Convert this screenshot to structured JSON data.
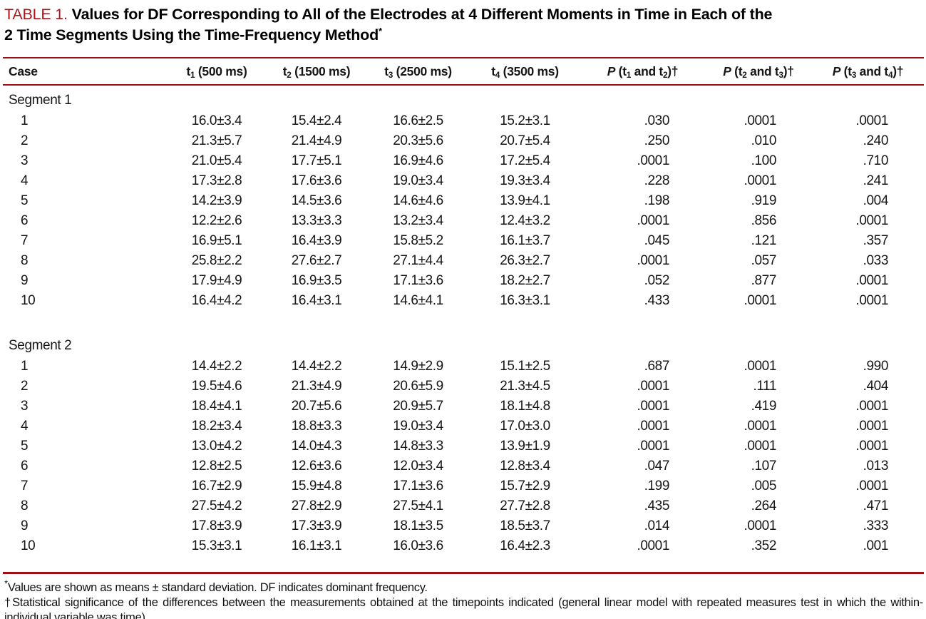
{
  "title": {
    "label": "TABLE 1.",
    "line1": "Values for DF Corresponding to All of the Electrodes at 4 Different Moments in Time in Each of the",
    "line2": "2 Time Segments Using the Time-Frequency Method",
    "marker": "*"
  },
  "colors": {
    "rule_red": "#9c0f13",
    "label_red": "#b01218"
  },
  "table": {
    "case_header": "Case",
    "time_headers": [
      {
        "base": "t",
        "sub": "1",
        "rest": " (500 ms)"
      },
      {
        "base": "t",
        "sub": "2",
        "rest": " (1500 ms)"
      },
      {
        "base": "t",
        "sub": "3",
        "rest": " (2500 ms)"
      },
      {
        "base": "t",
        "sub": "4",
        "rest": " (3500 ms)"
      }
    ],
    "p_headers": [
      {
        "p": "P",
        "open": " (t",
        "sub1": "1",
        "and": " and t",
        "sub2": "2",
        "close": ")†"
      },
      {
        "p": "P",
        "open": " (t",
        "sub1": "2",
        "and": " and t",
        "sub2": "3",
        "close": ")†"
      },
      {
        "p": "P",
        "open": " (t",
        "sub1": "3",
        "and": " and t",
        "sub2": "4",
        "close": ")†"
      }
    ],
    "segments": [
      {
        "label": "Segment 1",
        "rows": [
          {
            "case": "1",
            "values": [
              "16.0±3.4",
              "15.4±2.4",
              "16.6±2.5",
              "15.2±3.1",
              ".030",
              ".0001",
              ".0001"
            ]
          },
          {
            "case": "2",
            "values": [
              "21.3±5.7",
              "21.4±4.9",
              "20.3±5.6",
              "20.7±5.4",
              ".250",
              ".010",
              ".240"
            ]
          },
          {
            "case": "3",
            "values": [
              "21.0±5.4",
              "17.7±5.1",
              "16.9±4.6",
              "17.2±5.4",
              ".0001",
              ".100",
              ".710"
            ]
          },
          {
            "case": "4",
            "values": [
              "17.3±2.8",
              "17.6±3.6",
              "19.0±3.4",
              "19.3±3.4",
              ".228",
              ".0001",
              ".241"
            ]
          },
          {
            "case": "5",
            "values": [
              "14.2±3.9",
              "14.5±3.6",
              "14.6±4.6",
              "13.9±4.1",
              ".198",
              ".919",
              ".004"
            ]
          },
          {
            "case": "6",
            "values": [
              "12.2±2.6",
              "13.3±3.3",
              "13.2±3.4",
              "12.4±3.2",
              ".0001",
              ".856",
              ".0001"
            ]
          },
          {
            "case": "7",
            "values": [
              "16.9±5.1",
              "16.4±3.9",
              "15.8±5.2",
              "16.1±3.7",
              ".045",
              ".121",
              ".357"
            ]
          },
          {
            "case": "8",
            "values": [
              "25.8±2.2",
              "27.6±2.7",
              "27.1±4.4",
              "26.3±2.7",
              ".0001",
              ".057",
              ".033"
            ]
          },
          {
            "case": "9",
            "values": [
              "17.9±4.9",
              "16.9±3.5",
              "17.1±3.6",
              "18.2±2.7",
              ".052",
              ".877",
              ".0001"
            ]
          },
          {
            "case": "10",
            "values": [
              "16.4±4.2",
              "16.4±3.1",
              "14.6±4.1",
              "16.3±3.1",
              ".433",
              ".0001",
              ".0001"
            ]
          }
        ]
      },
      {
        "label": "Segment 2",
        "rows": [
          {
            "case": "1",
            "values": [
              "14.4±2.2",
              "14.4±2.2",
              "14.9±2.9",
              "15.1±2.5",
              ".687",
              ".0001",
              ".990"
            ]
          },
          {
            "case": "2",
            "values": [
              "19.5±4.6",
              "21.3±4.9",
              "20.6±5.9",
              "21.3±4.5",
              ".0001",
              ".111",
              ".404"
            ]
          },
          {
            "case": "3",
            "values": [
              "18.4±4.1",
              "20.7±5.6",
              "20.9±5.7",
              "18.1±4.8",
              ".0001",
              ".419",
              ".0001"
            ]
          },
          {
            "case": "4",
            "values": [
              "18.2±3.4",
              "18.8±3.3",
              "19.0±3.4",
              "17.0±3.0",
              ".0001",
              ".0001",
              ".0001"
            ]
          },
          {
            "case": "5",
            "values": [
              "13.0±4.2",
              "14.0±4.3",
              "14.8±3.3",
              "13.9±1.9",
              ".0001",
              ".0001",
              ".0001"
            ]
          },
          {
            "case": "6",
            "values": [
              "12.8±2.5",
              "12.6±3.6",
              "12.0±3.4",
              "12.8±3.4",
              ".047",
              ".107",
              ".013"
            ]
          },
          {
            "case": "7",
            "values": [
              "16.7±2.9",
              "15.9±4.8",
              "17.1±3.6",
              "15.7±2.9",
              ".199",
              ".005",
              ".0001"
            ]
          },
          {
            "case": "8",
            "values": [
              "27.5±4.2",
              "27.8±2.9",
              "27.5±4.1",
              "27.7±2.8",
              ".435",
              ".264",
              ".471"
            ]
          },
          {
            "case": "9",
            "values": [
              "17.8±3.9",
              "17.3±3.9",
              "18.1±3.5",
              "18.5±3.7",
              ".014",
              ".0001",
              ".333"
            ]
          },
          {
            "case": "10",
            "values": [
              "15.3±3.1",
              "16.1±3.1",
              "16.0±3.6",
              "16.4±2.3",
              ".0001",
              ".352",
              ".001"
            ]
          }
        ]
      }
    ]
  },
  "footnotes": [
    {
      "marker": "*",
      "text": "Values are shown as means ± standard deviation. DF indicates dominant frequency."
    },
    {
      "marker": "†",
      "text": "Statistical significance of the differences between the measurements obtained at the timepoints indicated (general linear model with repeated measures test in which the within-individual variable was time)."
    }
  ]
}
